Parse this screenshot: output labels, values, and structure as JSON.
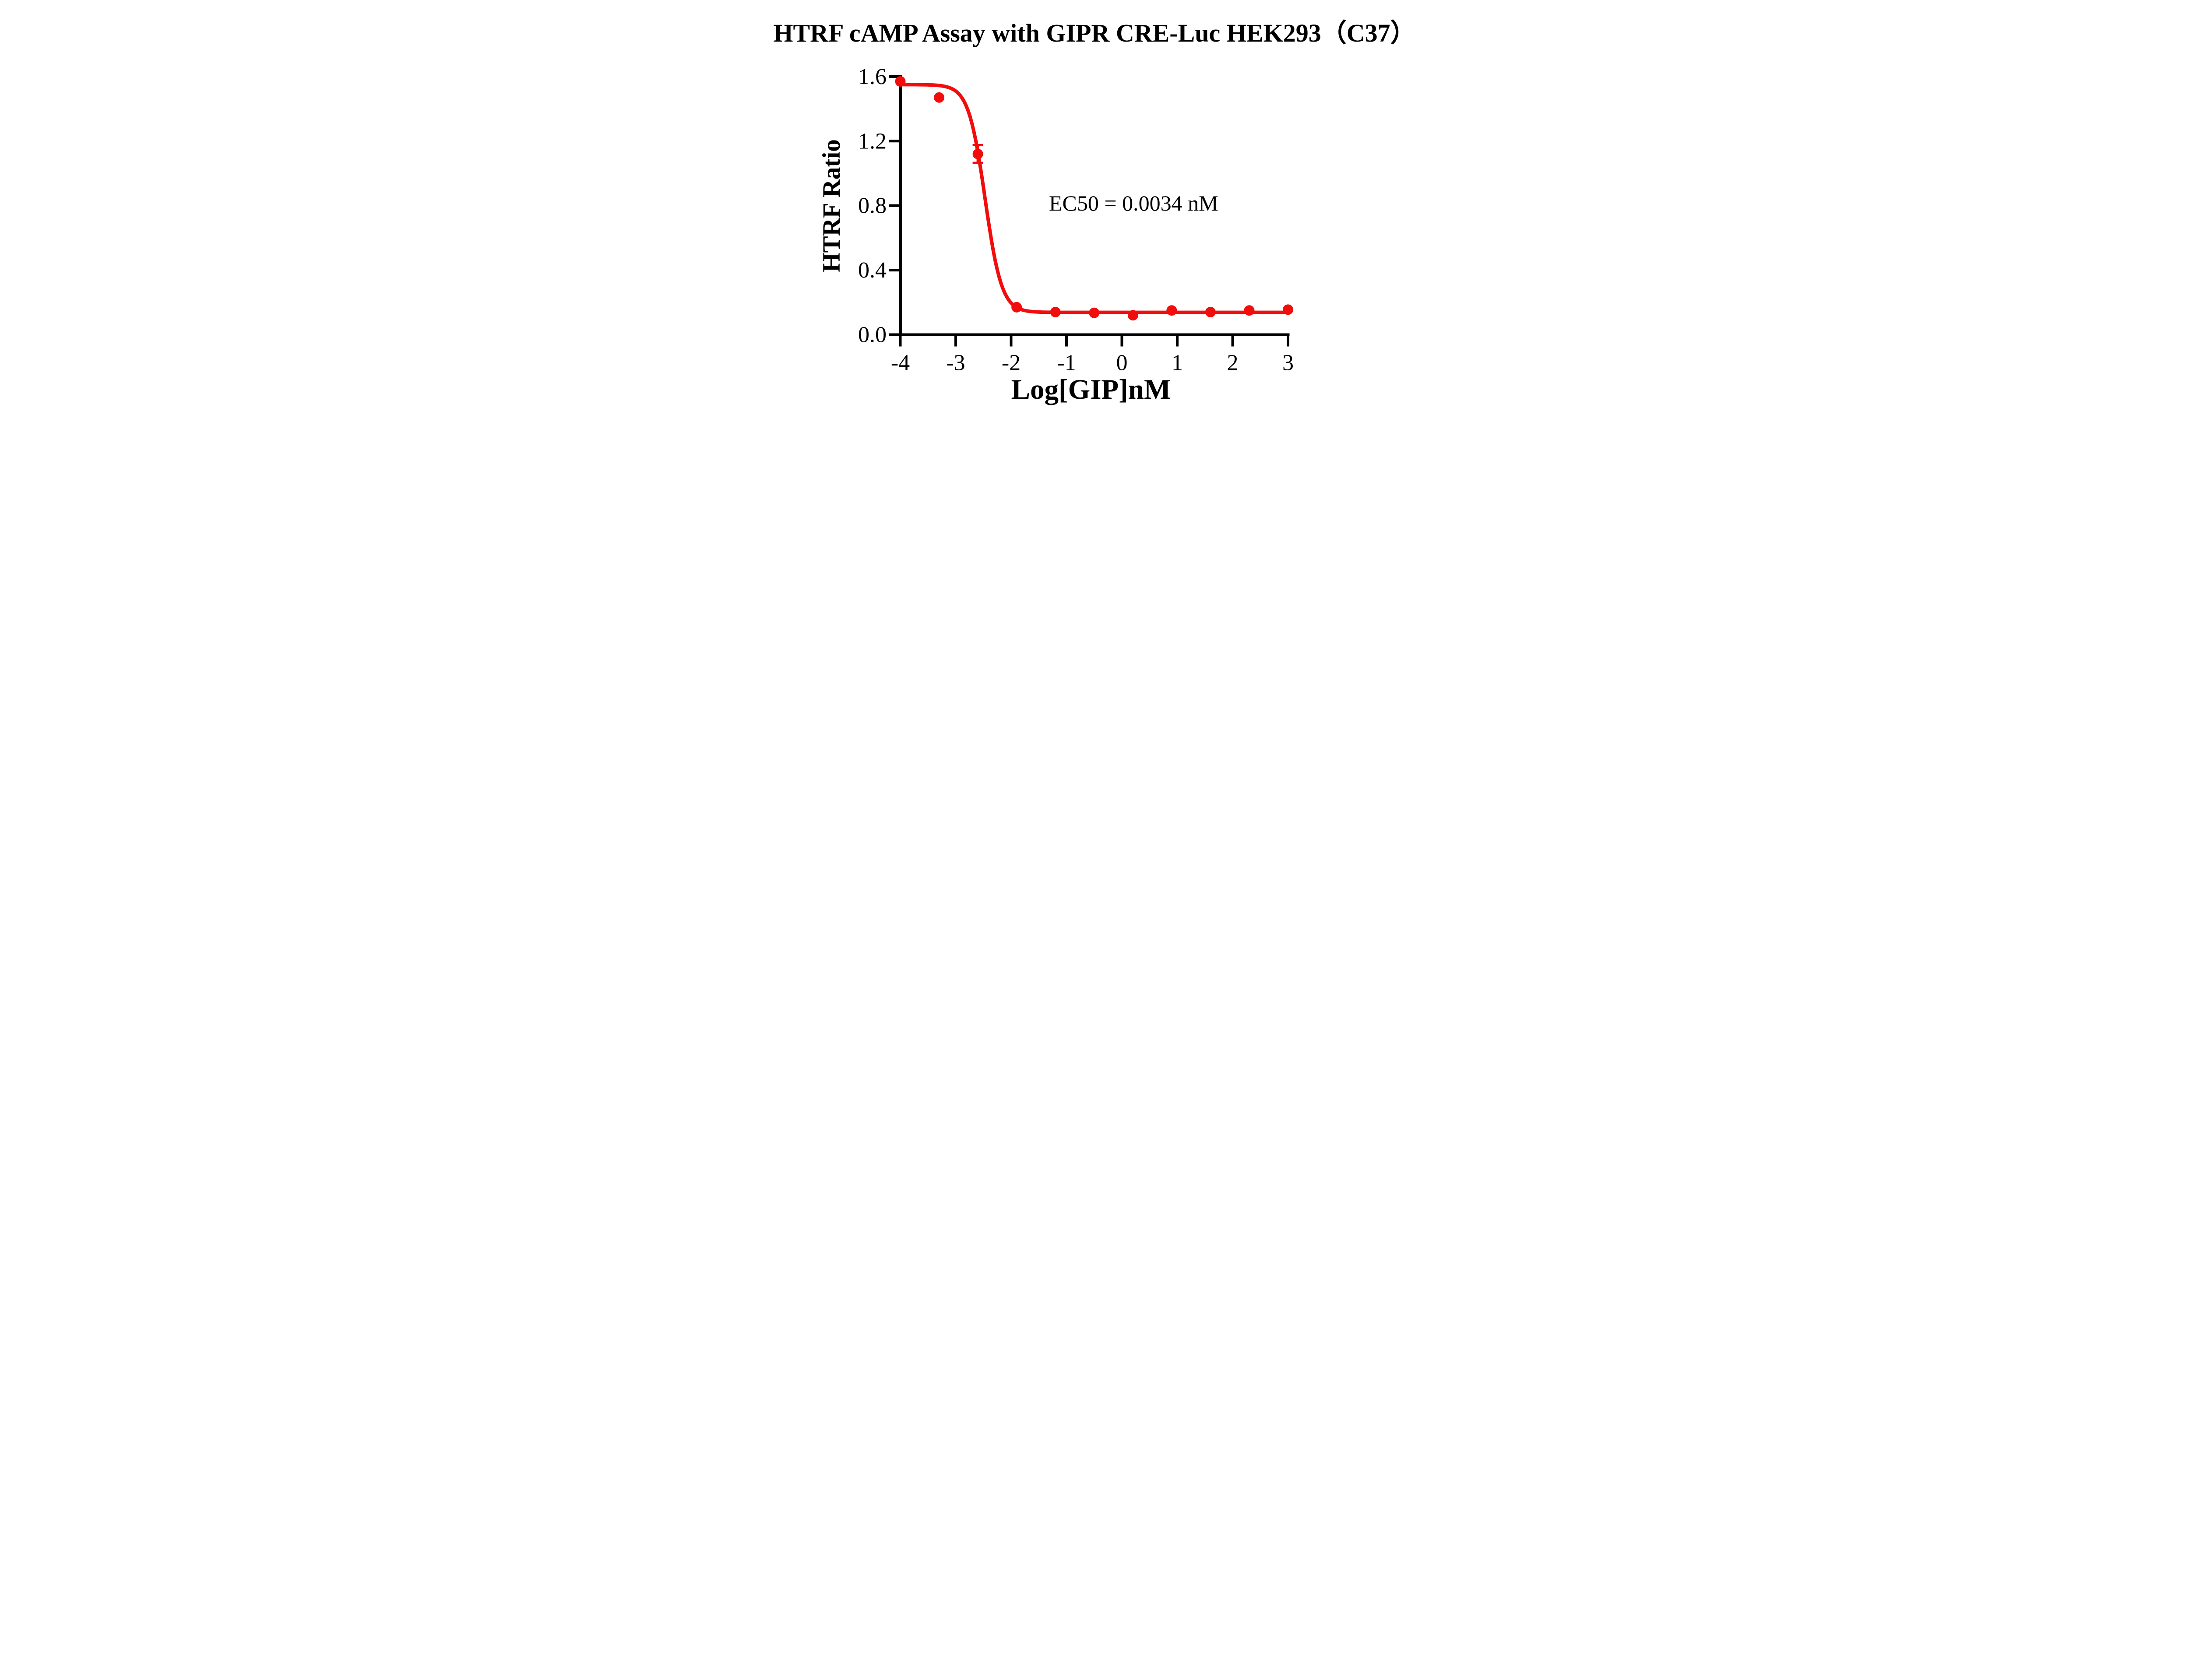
{
  "title": "HTRF cAMP Assay with GIPR CRE-Luc HEK293（C37）",
  "annotation": "EC50 = 0.0034 nM",
  "colors": {
    "background": "#FFFFFF",
    "axis": "#000000",
    "text": "#000000",
    "curve": "#F20D0D"
  },
  "chart_data": {
    "type": "scatter",
    "subtype": "dose-response sigmoid fit",
    "title": "HTRF cAMP Assay with GIPR CRE-Luc HEK293（C37）",
    "xlabel": "Log[GIP]nM",
    "ylabel": "HTRF Ratio",
    "xlim": [
      -4,
      3
    ],
    "ylim": [
      0.0,
      1.6
    ],
    "x_ticks": [
      -4,
      -3,
      -2,
      -1,
      0,
      1,
      2,
      3
    ],
    "x_tick_labels": [
      "-4",
      "-3",
      "-2",
      "-1",
      "0",
      "1",
      "2",
      "3"
    ],
    "y_ticks": [
      0.0,
      0.4,
      0.8,
      1.2,
      1.6
    ],
    "y_tick_labels": [
      "0.0",
      "0.4",
      "0.8",
      "1.2",
      "1.6"
    ],
    "grid": false,
    "legend": "none",
    "series": [
      {
        "name": "GIP",
        "marker": "circle",
        "color": "#F20D0D",
        "points": [
          {
            "x": -4.0,
            "y": 1.57,
            "error": 0
          },
          {
            "x": -3.3,
            "y": 1.47,
            "error": 0
          },
          {
            "x": -2.6,
            "y": 1.12,
            "error": 0.055
          },
          {
            "x": -1.9,
            "y": 0.17,
            "error": 0
          },
          {
            "x": -1.2,
            "y": 0.14,
            "error": 0
          },
          {
            "x": -0.5,
            "y": 0.135,
            "error": 0
          },
          {
            "x": 0.2,
            "y": 0.12,
            "error": 0
          },
          {
            "x": 0.9,
            "y": 0.15,
            "error": 0
          },
          {
            "x": 1.6,
            "y": 0.14,
            "error": 0
          },
          {
            "x": 2.3,
            "y": 0.15,
            "error": 0
          },
          {
            "x": 3.0,
            "y": 0.155,
            "error": 0
          }
        ],
        "fit": {
          "model": "four-parameter logistic (decreasing)",
          "top": 1.55,
          "bottom": 0.138,
          "log_ec50": -2.47,
          "hill": 2.9,
          "ec50_nM": 0.0034
        }
      }
    ],
    "annotations": [
      {
        "text": "EC50 = 0.0034 nM",
        "x": -1.32,
        "y": 0.77
      }
    ]
  }
}
